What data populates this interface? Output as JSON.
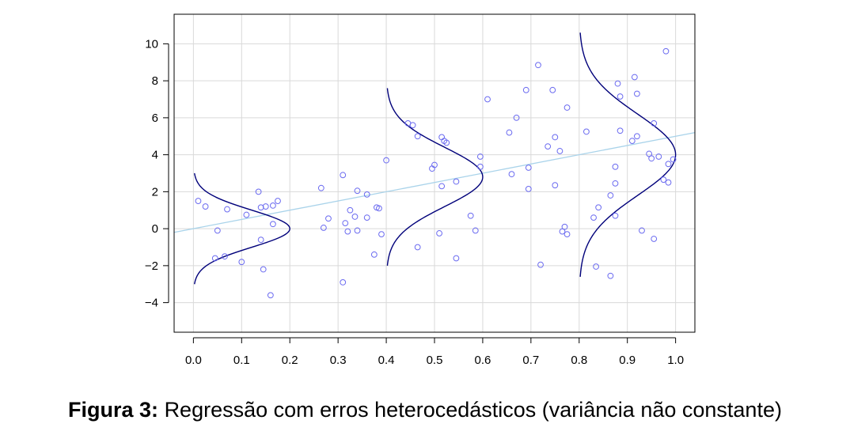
{
  "chart_data": {
    "type": "scatter",
    "xlim": [
      -0.04,
      1.04
    ],
    "ylim": [
      -5.6,
      11.6
    ],
    "x_ticks": [
      0.0,
      0.1,
      0.2,
      0.3,
      0.4,
      0.5,
      0.6,
      0.7,
      0.8,
      0.9,
      1.0
    ],
    "x_tick_labels": [
      "0.0",
      "0.1",
      "0.2",
      "0.3",
      "0.4",
      "0.5",
      "0.6",
      "0.7",
      "0.8",
      "0.9",
      "1.0"
    ],
    "y_ticks": [
      -4,
      -2,
      0,
      2,
      4,
      6,
      8,
      10
    ],
    "y_tick_labels": [
      "−4",
      "−2",
      "0",
      "2",
      "4",
      "6",
      "8",
      "10"
    ],
    "grid": true,
    "colors": {
      "points": "#6b6bf0",
      "regression_line": "#a9d3ea",
      "density_curves": "#00007a",
      "grid": "#d9d9d9",
      "frame": "#000000"
    },
    "regression_line": {
      "intercept": 0.0,
      "slope": 5.0
    },
    "density_curves": [
      {
        "x0": 0.0,
        "mean": 0.0,
        "sd": 1.0
      },
      {
        "x0": 0.4,
        "mean": 2.8,
        "sd": 1.6
      },
      {
        "x0": 0.8,
        "mean": 4.0,
        "sd": 2.2
      }
    ],
    "points": [
      {
        "x": 0.01,
        "y": 1.5
      },
      {
        "x": 0.025,
        "y": 1.2
      },
      {
        "x": 0.045,
        "y": -1.6
      },
      {
        "x": 0.05,
        "y": -0.1
      },
      {
        "x": 0.065,
        "y": -1.5
      },
      {
        "x": 0.07,
        "y": 1.05
      },
      {
        "x": 0.1,
        "y": -1.8
      },
      {
        "x": 0.11,
        "y": 0.75
      },
      {
        "x": 0.135,
        "y": 2.0
      },
      {
        "x": 0.14,
        "y": 1.15
      },
      {
        "x": 0.14,
        "y": -0.6
      },
      {
        "x": 0.145,
        "y": -2.2
      },
      {
        "x": 0.15,
        "y": 1.2
      },
      {
        "x": 0.16,
        "y": -3.6
      },
      {
        "x": 0.165,
        "y": 1.25
      },
      {
        "x": 0.165,
        "y": 0.25
      },
      {
        "x": 0.175,
        "y": 1.5
      },
      {
        "x": 0.265,
        "y": 2.2
      },
      {
        "x": 0.27,
        "y": 0.05
      },
      {
        "x": 0.28,
        "y": 0.55
      },
      {
        "x": 0.31,
        "y": 2.9
      },
      {
        "x": 0.31,
        "y": -2.9
      },
      {
        "x": 0.315,
        "y": 0.3
      },
      {
        "x": 0.32,
        "y": -0.15
      },
      {
        "x": 0.325,
        "y": 1.0
      },
      {
        "x": 0.335,
        "y": 0.65
      },
      {
        "x": 0.34,
        "y": 2.05
      },
      {
        "x": 0.34,
        "y": -0.1
      },
      {
        "x": 0.36,
        "y": 1.85
      },
      {
        "x": 0.36,
        "y": 0.6
      },
      {
        "x": 0.375,
        "y": -1.4
      },
      {
        "x": 0.38,
        "y": 1.15
      },
      {
        "x": 0.385,
        "y": 1.1
      },
      {
        "x": 0.39,
        "y": -0.3
      },
      {
        "x": 0.4,
        "y": 3.7
      },
      {
        "x": 0.445,
        "y": 5.7
      },
      {
        "x": 0.455,
        "y": 5.6
      },
      {
        "x": 0.465,
        "y": 5.0
      },
      {
        "x": 0.465,
        "y": -1.0
      },
      {
        "x": 0.495,
        "y": 3.25
      },
      {
        "x": 0.5,
        "y": 3.45
      },
      {
        "x": 0.51,
        "y": -0.25
      },
      {
        "x": 0.515,
        "y": 4.95
      },
      {
        "x": 0.515,
        "y": 2.3
      },
      {
        "x": 0.52,
        "y": 4.75
      },
      {
        "x": 0.525,
        "y": 4.65
      },
      {
        "x": 0.545,
        "y": 2.55
      },
      {
        "x": 0.545,
        "y": -1.6
      },
      {
        "x": 0.575,
        "y": 0.7
      },
      {
        "x": 0.585,
        "y": -0.1
      },
      {
        "x": 0.595,
        "y": 3.9
      },
      {
        "x": 0.595,
        "y": 3.35
      },
      {
        "x": 0.61,
        "y": 7.0
      },
      {
        "x": 0.655,
        "y": 5.2
      },
      {
        "x": 0.66,
        "y": 2.95
      },
      {
        "x": 0.67,
        "y": 6.0
      },
      {
        "x": 0.69,
        "y": 7.5
      },
      {
        "x": 0.695,
        "y": 3.3
      },
      {
        "x": 0.695,
        "y": 2.15
      },
      {
        "x": 0.715,
        "y": 8.85
      },
      {
        "x": 0.72,
        "y": -1.95
      },
      {
        "x": 0.735,
        "y": 4.45
      },
      {
        "x": 0.745,
        "y": 7.5
      },
      {
        "x": 0.75,
        "y": 4.95
      },
      {
        "x": 0.75,
        "y": 2.35
      },
      {
        "x": 0.76,
        "y": 4.2
      },
      {
        "x": 0.765,
        "y": -0.15
      },
      {
        "x": 0.77,
        "y": 0.1
      },
      {
        "x": 0.775,
        "y": -0.3
      },
      {
        "x": 0.775,
        "y": 6.55
      },
      {
        "x": 0.815,
        "y": 5.25
      },
      {
        "x": 0.83,
        "y": 0.6
      },
      {
        "x": 0.835,
        "y": -2.05
      },
      {
        "x": 0.84,
        "y": 1.15
      },
      {
        "x": 0.865,
        "y": 1.8
      },
      {
        "x": 0.865,
        "y": -2.55
      },
      {
        "x": 0.875,
        "y": 3.35
      },
      {
        "x": 0.875,
        "y": 2.45
      },
      {
        "x": 0.875,
        "y": 0.7
      },
      {
        "x": 0.88,
        "y": 7.85
      },
      {
        "x": 0.885,
        "y": 7.15
      },
      {
        "x": 0.885,
        "y": 5.3
      },
      {
        "x": 0.91,
        "y": 4.75
      },
      {
        "x": 0.915,
        "y": 8.2
      },
      {
        "x": 0.92,
        "y": 7.3
      },
      {
        "x": 0.92,
        "y": 5.0
      },
      {
        "x": 0.93,
        "y": -0.1
      },
      {
        "x": 0.945,
        "y": 4.05
      },
      {
        "x": 0.95,
        "y": 3.8
      },
      {
        "x": 0.955,
        "y": 5.7
      },
      {
        "x": 0.955,
        "y": -0.55
      },
      {
        "x": 0.965,
        "y": 3.9
      },
      {
        "x": 0.975,
        "y": 2.65
      },
      {
        "x": 0.98,
        "y": 9.6
      },
      {
        "x": 0.985,
        "y": 2.5
      },
      {
        "x": 0.985,
        "y": 3.5
      },
      {
        "x": 0.995,
        "y": 3.75
      }
    ]
  },
  "caption": {
    "label": "Figura 3:",
    "text": "Regressão com erros heterocedásticos (variância não constante)"
  }
}
